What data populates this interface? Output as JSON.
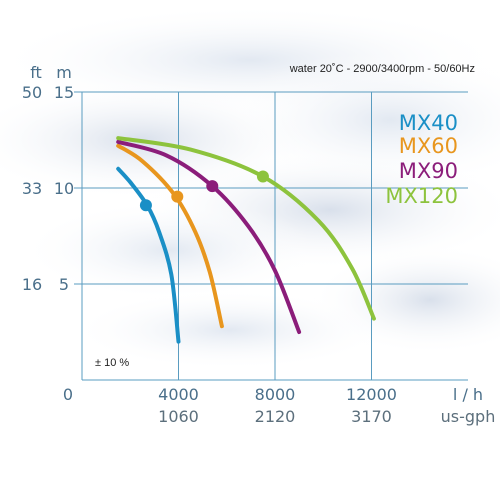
{
  "chart_data": {
    "type": "line",
    "title": "water 20˚C - 2900/3400rpm - 50/60Hz",
    "x_unit_primary": "l / h",
    "x_unit_secondary": "us-gph",
    "y_unit_m": "m",
    "y_unit_ft": "ft",
    "x_ticks": [
      {
        "value": 0,
        "label": "0",
        "sub": ""
      },
      {
        "value": 4000,
        "label": "4000",
        "sub": "1060"
      },
      {
        "value": 8000,
        "label": "8000",
        "sub": "2120"
      },
      {
        "value": 12000,
        "label": "12000",
        "sub": "3170"
      }
    ],
    "y_ticks": [
      {
        "value": 5,
        "m": "5",
        "ft": "16"
      },
      {
        "value": 10,
        "m": "10",
        "ft": "33"
      },
      {
        "value": 15,
        "m": "15",
        "ft": "50"
      }
    ],
    "xlim": [
      0,
      16000
    ],
    "ylim": [
      0,
      15
    ],
    "grid": true,
    "legend_position": "top-right",
    "tolerance_note": "± 10 %",
    "series": [
      {
        "name": "MX40",
        "color": "#1a8fc6",
        "points": [
          [
            1500,
            11.0
          ],
          [
            2000,
            10.3
          ],
          [
            2700,
            9.1
          ],
          [
            3200,
            7.7
          ],
          [
            3700,
            5.5
          ],
          [
            4000,
            2.0
          ]
        ],
        "marker": [
          2650,
          9.1
        ]
      },
      {
        "name": "MX60",
        "color": "#e8961e",
        "points": [
          [
            1500,
            12.2
          ],
          [
            2500,
            11.4
          ],
          [
            3800,
            9.7
          ],
          [
            4700,
            7.7
          ],
          [
            5300,
            5.6
          ],
          [
            5800,
            2.8
          ]
        ],
        "marker": [
          3950,
          9.55
        ]
      },
      {
        "name": "MX90",
        "color": "#8b1d7a",
        "points": [
          [
            1500,
            12.4
          ],
          [
            3500,
            11.7
          ],
          [
            5400,
            10.1
          ],
          [
            6900,
            8.0
          ],
          [
            8000,
            5.7
          ],
          [
            9000,
            2.5
          ]
        ],
        "marker": [
          5400,
          10.1
        ]
      },
      {
        "name": "MX120",
        "color": "#8dc33d",
        "points": [
          [
            1500,
            12.6
          ],
          [
            4500,
            12.0
          ],
          [
            7500,
            10.6
          ],
          [
            9800,
            8.3
          ],
          [
            11200,
            5.8
          ],
          [
            12100,
            3.2
          ]
        ],
        "marker": [
          7500,
          10.6
        ]
      }
    ]
  }
}
